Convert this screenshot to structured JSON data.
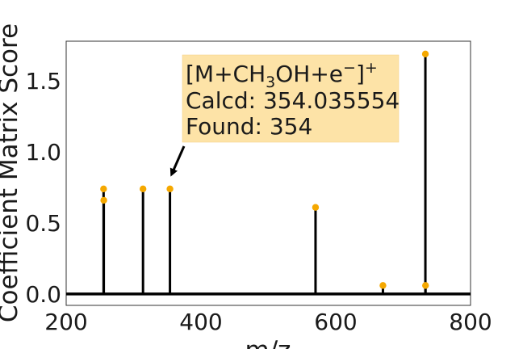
{
  "chart_data": {
    "type": "stem",
    "xlabel": "m/z",
    "ylabel": "Coefficient Matrix Score",
    "xlim": [
      200,
      800
    ],
    "ylim": [
      -0.08,
      1.78
    ],
    "xticks": [
      200,
      400,
      600,
      800
    ],
    "yticks": [
      0.0,
      0.5,
      1.0,
      1.5
    ],
    "xtick_labels": [
      "200",
      "400",
      "600",
      "800"
    ],
    "ytick_labels": [
      "0.0",
      "0.5",
      "1.0",
      "1.5"
    ],
    "grid": false,
    "stems": [
      {
        "x": 255.5,
        "y": 0.74
      },
      {
        "x": 255.8,
        "y": 0.66
      },
      {
        "x": 314,
        "y": 0.74
      },
      {
        "x": 354,
        "y": 0.74
      },
      {
        "x": 570,
        "y": 0.61
      },
      {
        "x": 670,
        "y": 0.06
      },
      {
        "x": 733,
        "y": 1.69
      },
      {
        "x": 733.2,
        "y": 0.06
      }
    ],
    "annotation": {
      "formula_parts": [
        "[M+CH",
        "3",
        "OH+e",
        "−",
        "]",
        "+"
      ],
      "calcd": "Calcd: 354.035554",
      "found": "Found: 354",
      "target_x": 354,
      "target_y": 0.74
    },
    "colors": {
      "stem": "#000000",
      "marker": "#f5a800",
      "annotation_bg": "#fde3a7",
      "axis_frame": "#333333"
    }
  }
}
